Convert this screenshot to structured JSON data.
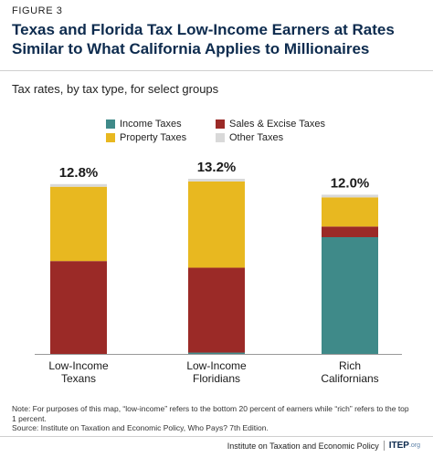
{
  "figure_label": "FIGURE 3",
  "title": "Texas and Florida Tax Low-Income Earners at Rates Similar to What California Applies to Millionaires",
  "subtitle": "Tax rates, by tax type, for select groups",
  "legend": [
    {
      "name": "Income Taxes",
      "color": "#3f8a89"
    },
    {
      "name": "Sales & Excise Taxes",
      "color": "#9b2a27"
    },
    {
      "name": "Property Taxes",
      "color": "#e8b820"
    },
    {
      "name": "Other Taxes",
      "color": "#d9d9d9"
    }
  ],
  "chart_data": {
    "type": "bar",
    "stacked": true,
    "categories": [
      "Low-Income Texans",
      "Low-Income Floridians",
      "Rich Californians"
    ],
    "category_lines": [
      [
        "Low-Income",
        "Texans"
      ],
      [
        "Low-Income",
        "Floridians"
      ],
      [
        "Rich",
        "Californians"
      ]
    ],
    "totals_label": [
      "12.8%",
      "13.2%",
      "12.0%"
    ],
    "ylim": [
      0,
      13.2
    ],
    "series": [
      {
        "name": "Income Taxes",
        "color": "#3f8a89",
        "values": [
          0.0,
          0.1,
          8.8
        ]
      },
      {
        "name": "Sales & Excise Taxes",
        "color": "#9b2a27",
        "values": [
          7.0,
          6.4,
          0.8
        ]
      },
      {
        "name": "Property Taxes",
        "color": "#e8b820",
        "values": [
          5.6,
          6.5,
          2.2
        ]
      },
      {
        "name": "Other Taxes",
        "color": "#d9d9d9",
        "values": [
          0.2,
          0.2,
          0.2
        ]
      }
    ]
  },
  "note": "Note: For purposes of this map, “low-income” refers to the bottom 20 percent of earners while “rich” refers to the top 1 percent.",
  "source": "Source: Institute on Taxation and Economic Policy, Who Pays? 7th Edition.",
  "footer": {
    "org": "Institute on Taxation and Economic Policy",
    "logo": "ITEP",
    "logo_suffix": ".org"
  }
}
